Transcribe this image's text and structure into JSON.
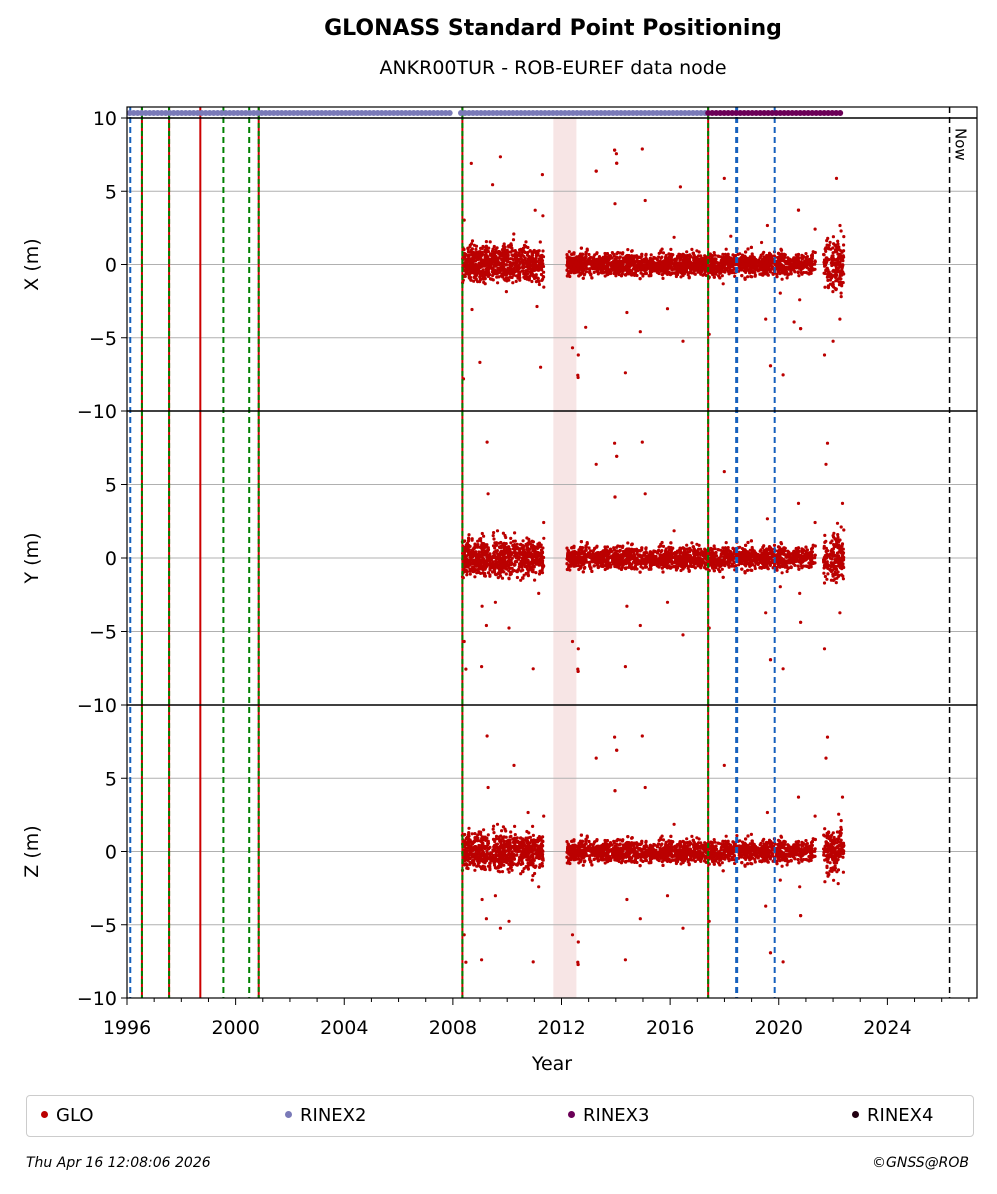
{
  "chart_data": {
    "type": "scatter",
    "title": "GLONASS Standard Point Positioning",
    "subtitle": "ANKR00TUR - ROB-EUREF data node",
    "xlabel": "Year",
    "xlim": [
      1996.0,
      2027.3
    ],
    "x_ticks": [
      "1996",
      "2000",
      "2004",
      "2008",
      "2012",
      "2016",
      "2020",
      "2024"
    ],
    "grid": true,
    "now_label": "Now",
    "now_year": 2026.29,
    "panels": [
      {
        "ylabel": "X (m)",
        "ylim": [
          -10,
          10
        ],
        "yticks": [
          "10",
          "5",
          "0",
          "−5",
          "−10"
        ]
      },
      {
        "ylabel": "Y (m)",
        "ylim": [
          -10,
          10
        ],
        "yticks": [
          "",
          "5",
          "0",
          "−5",
          "−10"
        ]
      },
      {
        "ylabel": "Z (m)",
        "ylim": [
          -10,
          10
        ],
        "yticks": [
          "",
          "5",
          "0",
          "−5",
          "−10"
        ]
      }
    ],
    "data_segments": [
      {
        "start": 2008.35,
        "end": 2011.35,
        "spread": 0.9
      },
      {
        "start": 2012.2,
        "end": 2021.35,
        "spread": 0.55
      },
      {
        "start": 2021.65,
        "end": 2022.4,
        "spread": 1.2
      }
    ],
    "shaded_intervals": [
      [
        2011.7,
        2012.55
      ]
    ],
    "event_lines": [
      {
        "year": 1996.12,
        "color": "#1560bd",
        "style": "dashed"
      },
      {
        "year": 1996.55,
        "color": "#008000",
        "style": "red-green"
      },
      {
        "year": 1997.55,
        "color": "#008000",
        "style": "red-green"
      },
      {
        "year": 1998.7,
        "color": "#cc0000",
        "style": "solid"
      },
      {
        "year": 1999.55,
        "color": "#008000",
        "style": "dashed"
      },
      {
        "year": 2000.5,
        "color": "#008000",
        "style": "dashed"
      },
      {
        "year": 2000.85,
        "color": "#008000",
        "style": "red-green"
      },
      {
        "year": 2008.35,
        "color": "#008000",
        "style": "red-green"
      },
      {
        "year": 2017.4,
        "color": "#008000",
        "style": "red-green"
      },
      {
        "year": 2018.45,
        "color": "#1560bd",
        "style": "dashed-thick"
      },
      {
        "year": 2019.85,
        "color": "#1560bd",
        "style": "dashed"
      }
    ],
    "rinex_bars": [
      {
        "name": "RINEX2",
        "start": 1996.1,
        "end": 2007.9,
        "color": "#7a7ab8"
      },
      {
        "name": "RINEX2",
        "start": 2008.3,
        "end": 2017.4,
        "color": "#7a7ab8"
      },
      {
        "name": "RINEX3",
        "start": 2017.4,
        "end": 2022.4,
        "color": "#6b0057"
      }
    ],
    "series": [
      {
        "name": "GLO",
        "color": "#bb0000"
      },
      {
        "name": "RINEX2",
        "color": "#7a7ab8"
      },
      {
        "name": "RINEX3",
        "color": "#6b0057"
      },
      {
        "name": "RINEX4",
        "color": "#220011"
      }
    ]
  },
  "footer": {
    "timestamp": "Thu Apr 16 12:08:06 2026",
    "credit": "©GNSS@ROB"
  }
}
